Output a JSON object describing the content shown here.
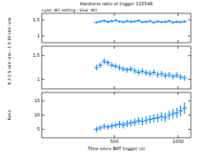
{
  "chart_data": [
    {
      "type": "scatter",
      "title": "Hardness ratio of trigger 115548",
      "subtitle": "cyan: W1 setting - blue: W1",
      "x": [
        360,
        390,
        420,
        450,
        480,
        510,
        540,
        570,
        600,
        630,
        660,
        690,
        720,
        750,
        780,
        810,
        840,
        870,
        900,
        930,
        960,
        990,
        1020,
        1050
      ],
      "xlim": [
        -70,
        1100
      ],
      "xticks": [
        500,
        1000
      ],
      "ylim": [
        0.8,
        1.7
      ],
      "yticks": [
        1,
        1.5
      ],
      "tick_labels": "y",
      "series": [
        {
          "name": "W1",
          "color": "#1e90ff",
          "marker": "cross",
          "values": [
            1.42,
            1.45,
            1.47,
            1.44,
            1.46,
            1.48,
            1.45,
            1.43,
            1.46,
            1.44,
            1.45,
            1.47,
            1.43,
            1.44,
            1.46,
            1.42,
            1.45,
            1.43,
            1.44,
            1.46,
            1.42,
            1.44,
            1.43,
            1.45
          ],
          "errors": [
            0.04,
            0.04,
            0.04,
            0.04,
            0.04,
            0.04,
            0.04,
            0.04,
            0.04,
            0.04,
            0.04,
            0.04,
            0.04,
            0.04,
            0.04,
            0.04,
            0.04,
            0.04,
            0.04,
            0.04,
            0.04,
            0.04,
            0.04,
            0.04
          ]
        }
      ]
    },
    {
      "type": "scatter",
      "y_label": "0.3-1.5 keV rate / 1.5-10 keV rate",
      "x": [
        360,
        390,
        420,
        450,
        480,
        510,
        540,
        570,
        600,
        630,
        660,
        690,
        720,
        750,
        780,
        810,
        840,
        870,
        900,
        930,
        960,
        990,
        1020,
        1050
      ],
      "xlim": [
        -70,
        1100
      ],
      "xticks": [
        500,
        1000
      ],
      "ylim": [
        0.8,
        1.7
      ],
      "yticks": [
        1,
        1.5
      ],
      "tick_labels": "y",
      "series": [
        {
          "name": "W1",
          "color": "#1e90ff",
          "marker": "cross",
          "values": [
            1.25,
            1.3,
            1.38,
            1.35,
            1.3,
            1.28,
            1.25,
            1.22,
            1.2,
            1.22,
            1.18,
            1.15,
            1.17,
            1.14,
            1.12,
            1.15,
            1.1,
            1.12,
            1.08,
            1.1,
            1.06,
            1.09,
            1.05,
            1.03
          ],
          "errors": [
            0.06,
            0.06,
            0.06,
            0.06,
            0.06,
            0.06,
            0.06,
            0.06,
            0.06,
            0.06,
            0.06,
            0.06,
            0.06,
            0.06,
            0.06,
            0.06,
            0.06,
            0.06,
            0.06,
            0.06,
            0.06,
            0.06,
            0.06,
            0.06
          ]
        }
      ]
    },
    {
      "type": "scatter",
      "y_label": "Ratio",
      "x_label": "Time since BAT trigger (s)",
      "x": [
        360,
        390,
        420,
        450,
        480,
        510,
        540,
        570,
        600,
        630,
        660,
        690,
        720,
        750,
        780,
        810,
        840,
        870,
        900,
        930,
        960,
        990,
        1020,
        1050
      ],
      "xlim": [
        -70,
        1100
      ],
      "xticks": [
        500,
        1000
      ],
      "ylim": [
        2,
        18
      ],
      "yticks": [
        5,
        10,
        15
      ],
      "series": [
        {
          "name": "W1",
          "color": "#1e90ff",
          "marker": "cross",
          "values": [
            5,
            5.5,
            6,
            5.8,
            6.2,
            6.5,
            6.8,
            6.5,
            7,
            7.2,
            7.5,
            8,
            7.8,
            8.2,
            8.5,
            8.8,
            9,
            9.5,
            9.2,
            10,
            10.5,
            10.8,
            11.5,
            12.5
          ],
          "errors": [
            1,
            1,
            1,
            1,
            1,
            1,
            1.2,
            1.2,
            1.2,
            1.2,
            1.3,
            1.3,
            1.3,
            1.4,
            1.4,
            1.5,
            1.5,
            1.5,
            1.6,
            1.6,
            1.7,
            1.8,
            1.9,
            2
          ]
        }
      ]
    }
  ]
}
